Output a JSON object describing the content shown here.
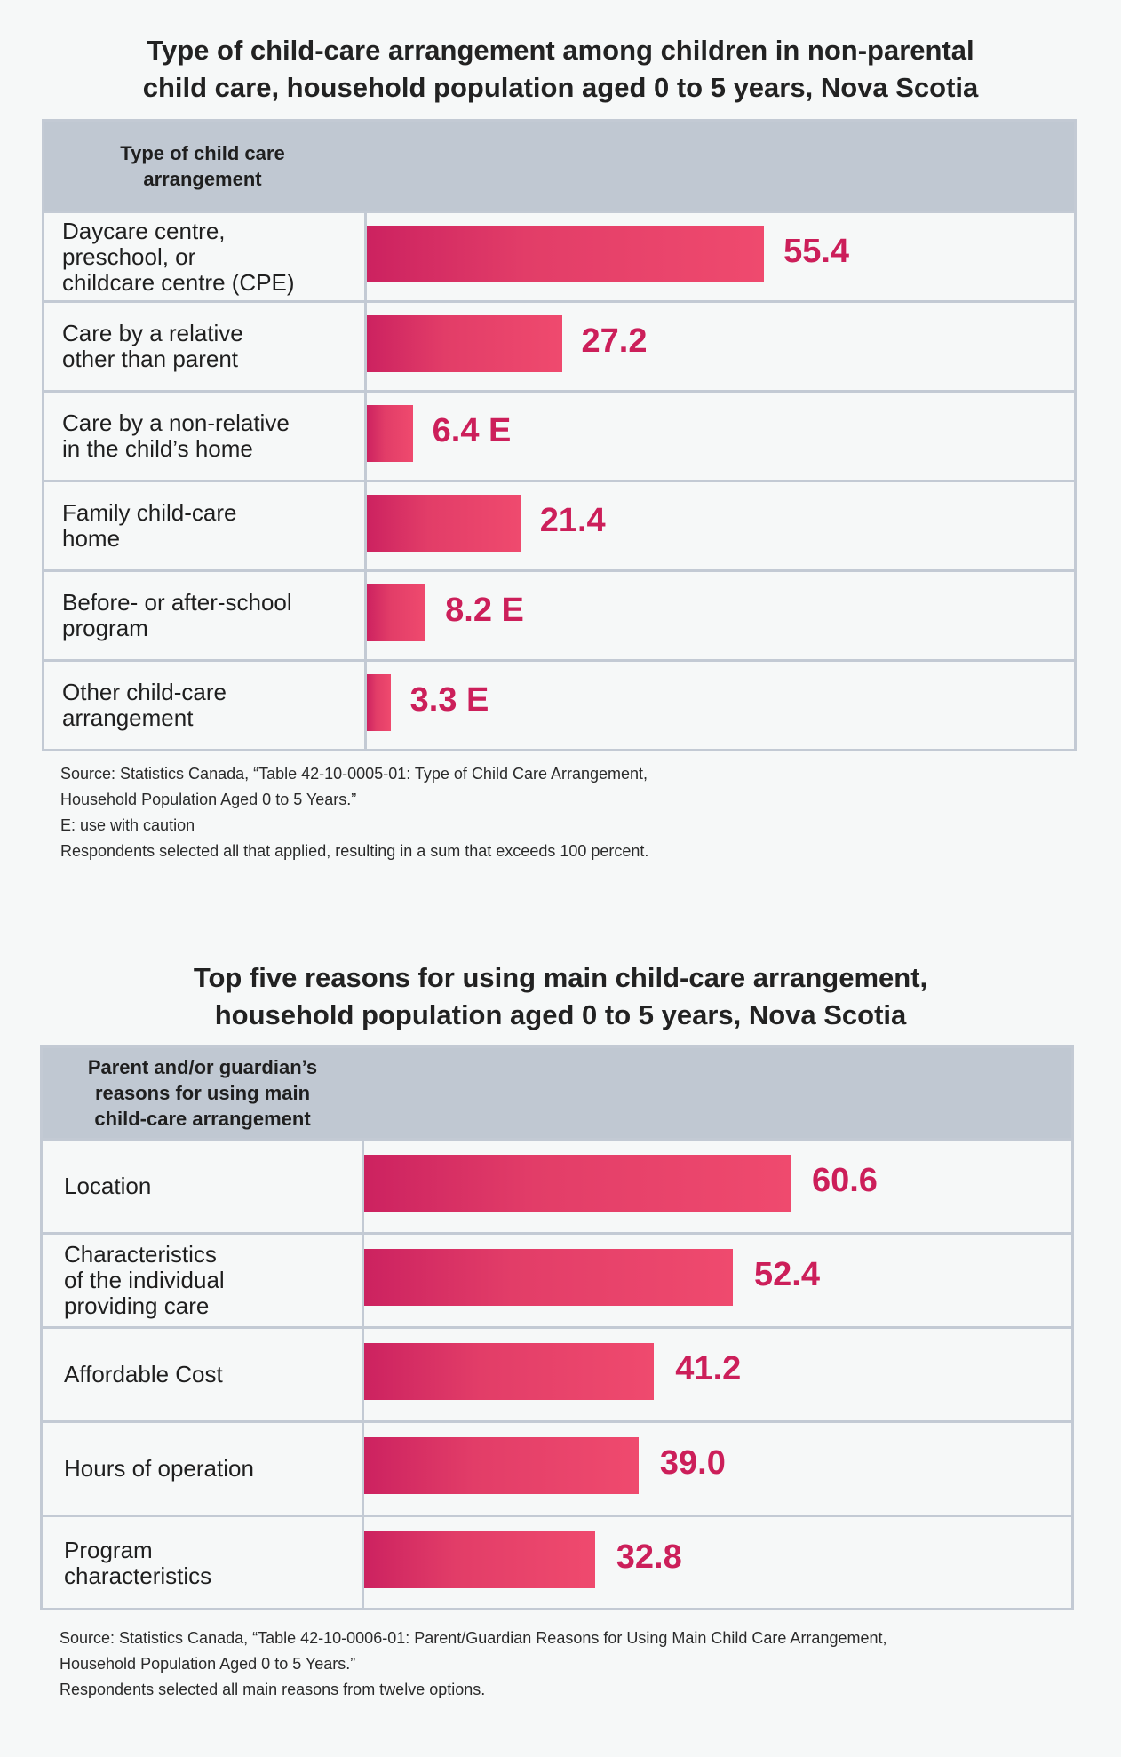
{
  "chart_data": [
    {
      "type": "bar",
      "orientation": "horizontal",
      "title": "Type of child-care arrangement among children in non-parental child care, household population aged 0 to 5 years, Nova Scotia",
      "title_lines": [
        "Type of child-care arrangement among children in non-parental",
        "child care, household population aged 0 to 5 years, Nova Scotia"
      ],
      "column_header": "Type of child care\narrangement",
      "categories": [
        "Daycare centre,\npreschool, or\nchildcare centre (CPE)",
        "Care by a relative\nother than parent",
        "Care by a non-relative\nin the child’s home",
        "Family child-care\nhome",
        "Before- or after-school\nprogram",
        "Other child-care\narrangement"
      ],
      "values": [
        55.4,
        27.2,
        6.4,
        21.4,
        8.2,
        3.3
      ],
      "value_labels": [
        "55.4",
        "27.2",
        "6.4 E",
        "21.4",
        "8.2 E",
        "3.3 E"
      ],
      "unit": "percent",
      "xlim": [
        0,
        100
      ],
      "grid": false,
      "notes": [
        "Source: Statistics Canada, “Table 42-10-0005-01: Type of Child Care Arrangement,",
        "Household Population Aged 0 to 5 Years.”",
        "E: use with caution",
        "Respondents selected all that applied, resulting in a sum that exceeds 100 percent."
      ]
    },
    {
      "type": "bar",
      "orientation": "horizontal",
      "title": "Top five reasons for using main child-care arrangement, household population aged 0 to 5 years, Nova Scotia",
      "title_lines": [
        "Top five reasons for using main child-care arrangement,",
        "household population aged 0 to 5 years, Nova Scotia"
      ],
      "column_header": "Parent and/or guardian’s\nreasons for using main\nchild-care arrangement",
      "categories": [
        "Location",
        "Characteristics\nof the individual\nproviding care",
        "Affordable Cost",
        "Hours of operation",
        "Program\ncharacteristics"
      ],
      "values": [
        60.6,
        52.4,
        41.2,
        39.0,
        32.8
      ],
      "value_labels": [
        "60.6",
        "52.4",
        "41.2",
        "39.0",
        "32.8"
      ],
      "unit": "percent",
      "xlim": [
        0,
        100
      ],
      "grid": false,
      "notes": [
        "Source: Statistics Canada, “Table 42-10-0006-01: Parent/Guardian Reasons for Using Main Child Care Arrangement,",
        "Household Population Aged 0 to 5 Years.”",
        "Respondents selected all main reasons from twelve options."
      ]
    }
  ],
  "colors": {
    "bar_start": "#cc2260",
    "bar_end": "#ef4a6e",
    "value_label": "#cc1f5a",
    "header_bg": "#c0c8d2",
    "border": "#c3cad4",
    "background": "#f6f8f8"
  }
}
